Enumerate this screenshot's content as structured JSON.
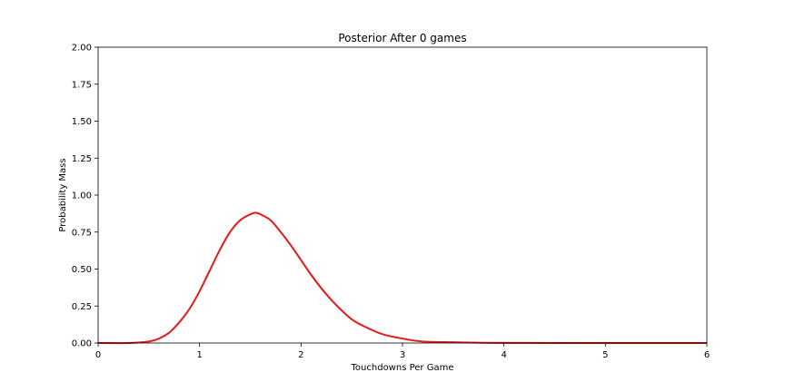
{
  "chart_data": {
    "type": "line",
    "title": "Posterior After 0 games",
    "xlabel": "Touchdowns Per Game",
    "ylabel": "Probability Mass",
    "xlim": [
      0,
      6
    ],
    "ylim": [
      0,
      2.0
    ],
    "x_ticks": [
      "0",
      "1",
      "2",
      "3",
      "4",
      "5",
      "6"
    ],
    "y_ticks": [
      "0.00",
      "0.25",
      "0.50",
      "0.75",
      "1.00",
      "1.25",
      "1.50",
      "1.75",
      "2.00"
    ],
    "grid": false,
    "legend": "none",
    "series": [
      {
        "color": "#ff0000",
        "x": [
          0.0,
          0.3,
          0.5,
          0.6,
          0.7,
          0.8,
          0.9,
          1.0,
          1.1,
          1.2,
          1.3,
          1.4,
          1.5,
          1.55,
          1.6,
          1.7,
          1.8,
          1.9,
          2.0,
          2.1,
          2.2,
          2.3,
          2.4,
          2.5,
          2.6,
          2.8,
          3.0,
          3.2,
          3.5,
          4.0,
          5.0,
          6.0
        ],
        "y": [
          0.0,
          0.0,
          0.01,
          0.03,
          0.07,
          0.14,
          0.23,
          0.35,
          0.49,
          0.63,
          0.75,
          0.83,
          0.87,
          0.88,
          0.87,
          0.83,
          0.75,
          0.66,
          0.56,
          0.46,
          0.37,
          0.29,
          0.22,
          0.16,
          0.12,
          0.06,
          0.03,
          0.01,
          0.005,
          0.001,
          0.0,
          0.0
        ]
      },
      {
        "color": "#d62728",
        "x": [
          0.0,
          0.3,
          0.5,
          0.6,
          0.7,
          0.8,
          0.9,
          1.0,
          1.1,
          1.2,
          1.3,
          1.4,
          1.5,
          1.55,
          1.6,
          1.7,
          1.8,
          1.9,
          2.0,
          2.1,
          2.2,
          2.3,
          2.4,
          2.5,
          2.6,
          2.8,
          3.0,
          3.2,
          3.5,
          4.0,
          5.0,
          6.0
        ],
        "y": [
          0.0,
          0.0,
          0.01,
          0.03,
          0.07,
          0.14,
          0.23,
          0.35,
          0.49,
          0.63,
          0.75,
          0.83,
          0.87,
          0.88,
          0.87,
          0.83,
          0.75,
          0.66,
          0.56,
          0.46,
          0.37,
          0.29,
          0.22,
          0.16,
          0.12,
          0.06,
          0.03,
          0.01,
          0.005,
          0.001,
          0.0,
          0.0
        ]
      }
    ]
  }
}
